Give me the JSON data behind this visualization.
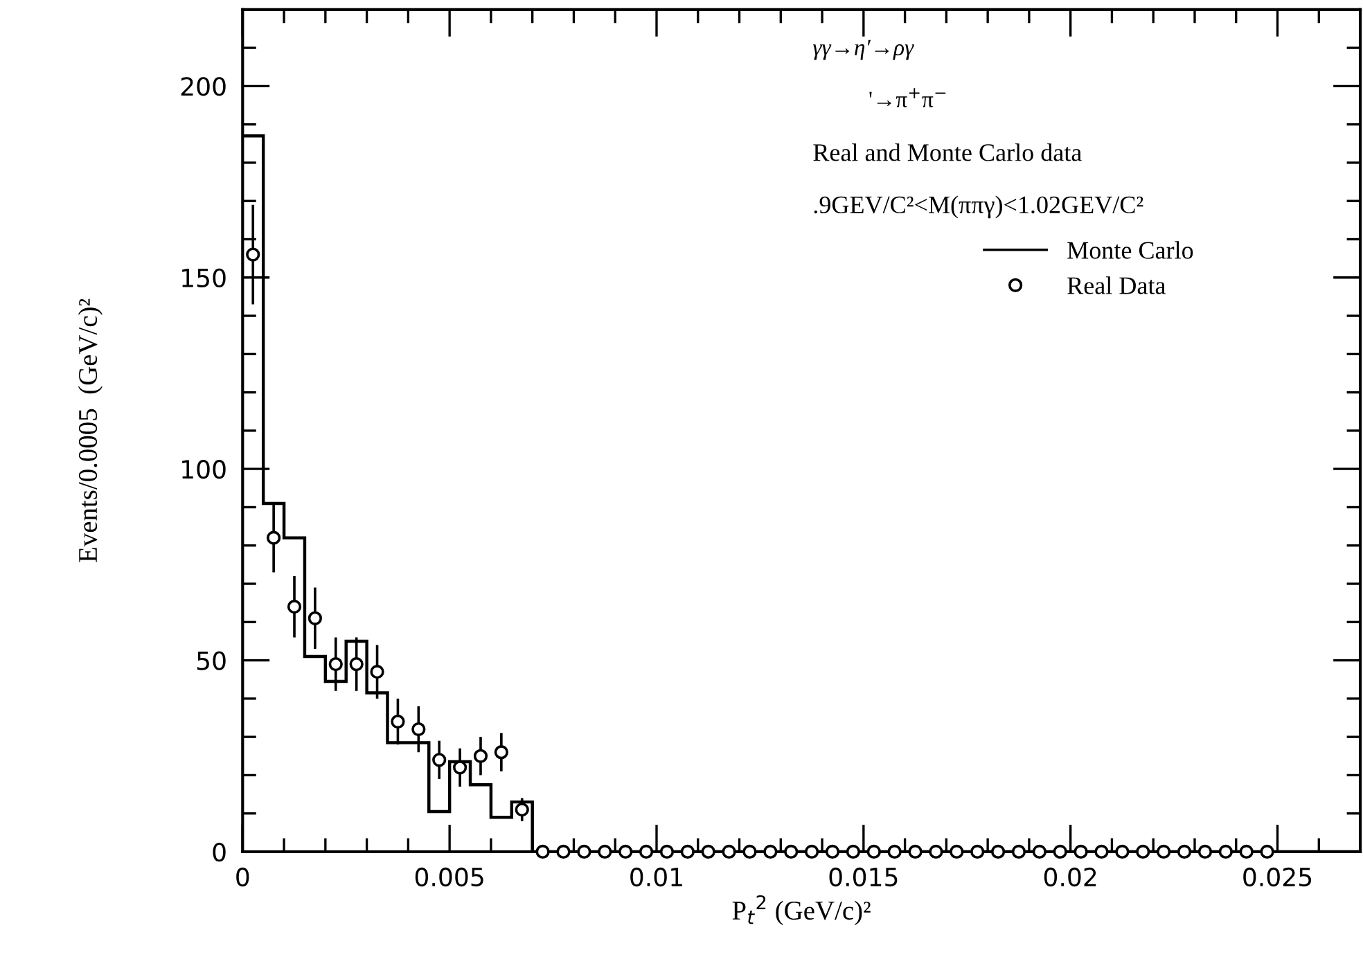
{
  "chart_data": {
    "type": "histogram",
    "xlabel": "P$_{t}$$^{2}$ (GeV/c)²",
    "ylabel": "Events/0.0005  (GeV/c)²",
    "annotations": [
      "γγ→η′→ργ",
      "'→π$^{+}$π$^{−}$",
      "Real and Monte Carlo data",
      ".9GEV/C²<M(ππγ)<1.02GEV/C²"
    ],
    "bins": [
      0,
      0.0005,
      0.001,
      0.0015,
      0.002,
      0.0025,
      0.003,
      0.0035,
      0.004,
      0.0045,
      0.005,
      0.0055,
      0.006,
      0.0065,
      0.007,
      0.0075,
      0.008,
      0.0085,
      0.009,
      0.0095,
      0.01,
      0.0105,
      0.011,
      0.0115,
      0.012,
      0.0125,
      0.013,
      0.0135,
      0.014,
      0.0145,
      0.015,
      0.0155,
      0.016,
      0.0165,
      0.017,
      0.0175,
      0.018,
      0.0185,
      0.019,
      0.0195,
      0.02,
      0.0205,
      0.021,
      0.0215,
      0.022,
      0.0225,
      0.023,
      0.0235,
      0.024,
      0.0245,
      0.025,
      0.0255,
      0.026,
      0.0265,
      0.027
    ],
    "series": [
      {
        "name": "Monte Carlo",
        "type": "histogram",
        "color": "#000000",
        "values": [
          187,
          91,
          82,
          51,
          44.5,
          55,
          41.5,
          28.5,
          28.5,
          10.5,
          23.5,
          17.5,
          9,
          13,
          0,
          0,
          0,
          0,
          0,
          0,
          0,
          0,
          0,
          0,
          0,
          0,
          0,
          0,
          0,
          0,
          0,
          0,
          0,
          0,
          0,
          0,
          0,
          0,
          0,
          0,
          0,
          0,
          0,
          0,
          0,
          0,
          0,
          0,
          0,
          0,
          0,
          0,
          0,
          0
        ]
      },
      {
        "name": "Real Data",
        "type": "scatter",
        "color": "#000000",
        "marker": "circle",
        "x": [
          0.00025,
          0.00075,
          0.00125,
          0.00175,
          0.00225,
          0.00275,
          0.00325,
          0.00375,
          0.00425,
          0.00475,
          0.00525,
          0.00575,
          0.00625,
          0.00675,
          0.00725,
          0.00775,
          0.00825,
          0.00875,
          0.00925,
          0.00975,
          0.01025,
          0.01075,
          0.01125,
          0.01175,
          0.01225,
          0.01275,
          0.01325,
          0.01375,
          0.01425,
          0.01475,
          0.01525,
          0.01575,
          0.01625,
          0.01675,
          0.01725,
          0.01775,
          0.01825,
          0.01875,
          0.01925,
          0.01975,
          0.02025,
          0.02075,
          0.02125,
          0.02175,
          0.02225,
          0.02275,
          0.02325,
          0.02375,
          0.02425,
          0.02475
        ],
        "values": [
          156,
          82,
          64,
          61,
          49,
          49,
          47,
          34,
          32,
          24,
          22,
          25,
          26,
          11,
          0,
          0,
          0,
          0,
          0,
          0,
          0,
          0,
          0,
          0,
          0,
          0,
          0,
          0,
          0,
          0,
          0,
          0,
          0,
          0,
          0,
          0,
          0,
          0,
          0,
          0,
          0,
          0,
          0,
          0,
          0,
          0,
          0,
          0,
          0,
          0
        ],
        "errors": [
          13,
          9,
          8,
          8,
          7,
          7,
          7,
          6,
          6,
          5,
          5,
          5,
          5,
          3,
          null,
          null,
          null,
          null,
          null,
          null,
          null,
          null,
          null,
          null,
          null,
          null,
          null,
          null,
          null,
          null,
          null,
          null,
          null,
          null,
          null,
          null,
          null,
          null,
          null,
          null,
          null,
          null,
          null,
          null,
          null,
          null,
          null,
          null,
          null,
          null
        ]
      }
    ],
    "xlim": [
      0,
      0.027
    ],
    "ylim": [
      0,
      220
    ],
    "xticks": [
      0,
      {
        "value": 0.001,
        "label": null
      },
      {
        "value": 0.002,
        "label": null
      },
      {
        "value": 0.003,
        "label": null
      },
      {
        "value": 0.004,
        "label": null
      },
      0.005,
      {
        "value": 0.006,
        "label": null
      },
      {
        "value": 0.007,
        "label": null
      },
      {
        "value": 0.008,
        "label": null
      },
      {
        "value": 0.009,
        "label": null
      },
      0.01,
      {
        "value": 0.011,
        "label": null
      },
      {
        "value": 0.012,
        "label": null
      },
      {
        "value": 0.013,
        "label": null
      },
      {
        "value": 0.014,
        "label": null
      },
      0.015,
      {
        "value": 0.016,
        "label": null
      },
      {
        "value": 0.017,
        "label": null
      },
      {
        "value": 0.018,
        "label": null
      },
      {
        "value": 0.019,
        "label": null
      },
      0.02,
      {
        "value": 0.021,
        "label": null
      },
      {
        "value": 0.022,
        "label": null
      },
      {
        "value": 0.023,
        "label": null
      },
      {
        "value": 0.024,
        "label": null
      },
      0.025,
      {
        "value": 0.026,
        "label": null
      }
    ],
    "yticks": [
      0,
      {
        "value": 10,
        "label": null
      },
      {
        "value": 20,
        "label": null
      },
      {
        "value": 30,
        "label": null
      },
      {
        "value": 40,
        "label": null
      },
      50,
      {
        "value": 60,
        "label": null
      },
      {
        "value": 70,
        "label": null
      },
      {
        "value": 80,
        "label": null
      },
      {
        "value": 90,
        "label": null
      },
      100,
      {
        "value": 110,
        "label": null
      },
      {
        "value": 120,
        "label": null
      },
      {
        "value": 130,
        "label": null
      },
      {
        "value": 140,
        "label": null
      },
      150,
      {
        "value": 160,
        "label": null
      },
      {
        "value": 170,
        "label": null
      },
      {
        "value": 180,
        "label": null
      },
      {
        "value": 190,
        "label": null
      },
      200,
      {
        "value": 210,
        "label": null
      }
    ],
    "legend": "top right",
    "grid": false
  }
}
